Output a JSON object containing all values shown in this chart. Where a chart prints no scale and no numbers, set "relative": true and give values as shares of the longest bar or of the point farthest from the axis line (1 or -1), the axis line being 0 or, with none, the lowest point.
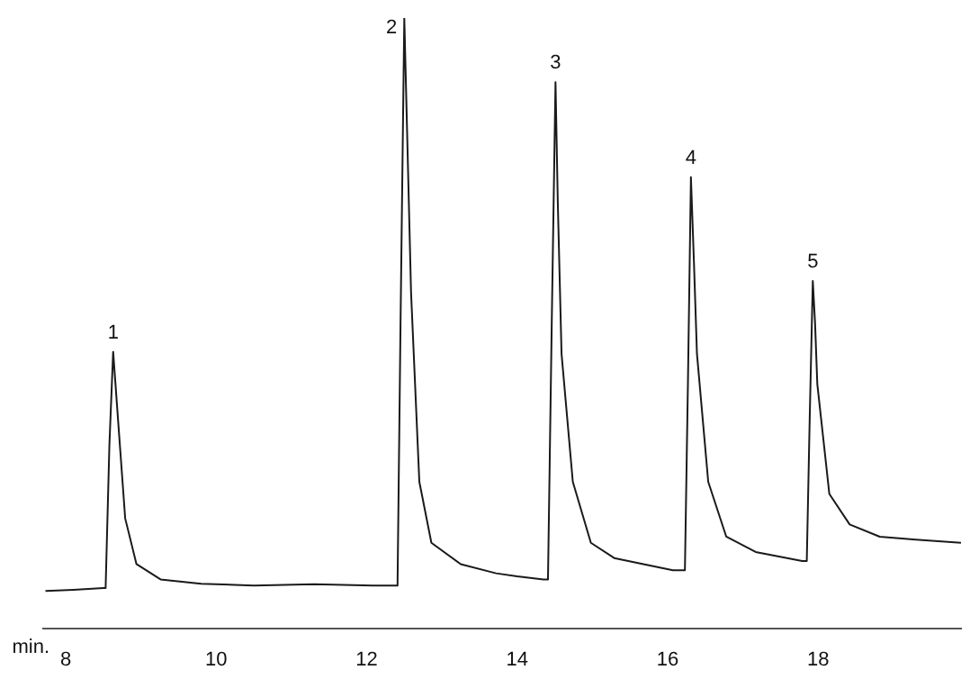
{
  "chart_data": {
    "type": "line",
    "relative": true,
    "xlabel": "min.",
    "xlim": [
      7.7,
      19.9
    ],
    "xticks": [
      8,
      10,
      12,
      14,
      16,
      18
    ],
    "grid": false,
    "legend": false,
    "marker": "none",
    "line_style": "solid",
    "series": [
      {
        "color": "#1a1a1a",
        "x": [
          7.73,
          8.1,
          8.5,
          8.53,
          8.58,
          8.63,
          8.69,
          8.79,
          8.94,
          9.26,
          9.8,
          10.5,
          11.3,
          12.08,
          12.41,
          12.45,
          12.5,
          12.54,
          12.59,
          12.7,
          12.86,
          13.25,
          13.72,
          14.0,
          14.35,
          14.41,
          14.46,
          14.51,
          14.54,
          14.59,
          14.74,
          14.98,
          15.29,
          16.07,
          16.23,
          16.27,
          16.31,
          16.35,
          16.39,
          16.54,
          16.78,
          17.17,
          17.79,
          17.85,
          17.89,
          17.93,
          17.96,
          17.99,
          18.15,
          18.42,
          18.82,
          19.3,
          19.9
        ],
        "values": [
          0.061,
          0.063,
          0.066,
          0.066,
          0.3,
          0.453,
          0.35,
          0.18,
          0.105,
          0.08,
          0.073,
          0.07,
          0.072,
          0.07,
          0.07,
          0.5,
          1,
          0.8,
          0.55,
          0.24,
          0.14,
          0.105,
          0.09,
          0.085,
          0.08,
          0.08,
          0.5,
          0.895,
          0.7,
          0.45,
          0.24,
          0.14,
          0.115,
          0.095,
          0.095,
          0.4,
          0.739,
          0.6,
          0.45,
          0.24,
          0.15,
          0.125,
          0.11,
          0.11,
          0.35,
          0.569,
          0.5,
          0.4,
          0.22,
          0.17,
          0.15,
          0.145,
          0.14
        ]
      }
    ],
    "annotations": [
      {
        "text": "1",
        "x": 8.63,
        "y": 0.453
      },
      {
        "text": "2",
        "x": 12.5,
        "y": 1
      },
      {
        "text": "3",
        "x": 14.51,
        "y": 0.895
      },
      {
        "text": "4",
        "x": 16.31,
        "y": 0.739
      },
      {
        "text": "5",
        "x": 17.93,
        "y": 0.569
      }
    ]
  }
}
